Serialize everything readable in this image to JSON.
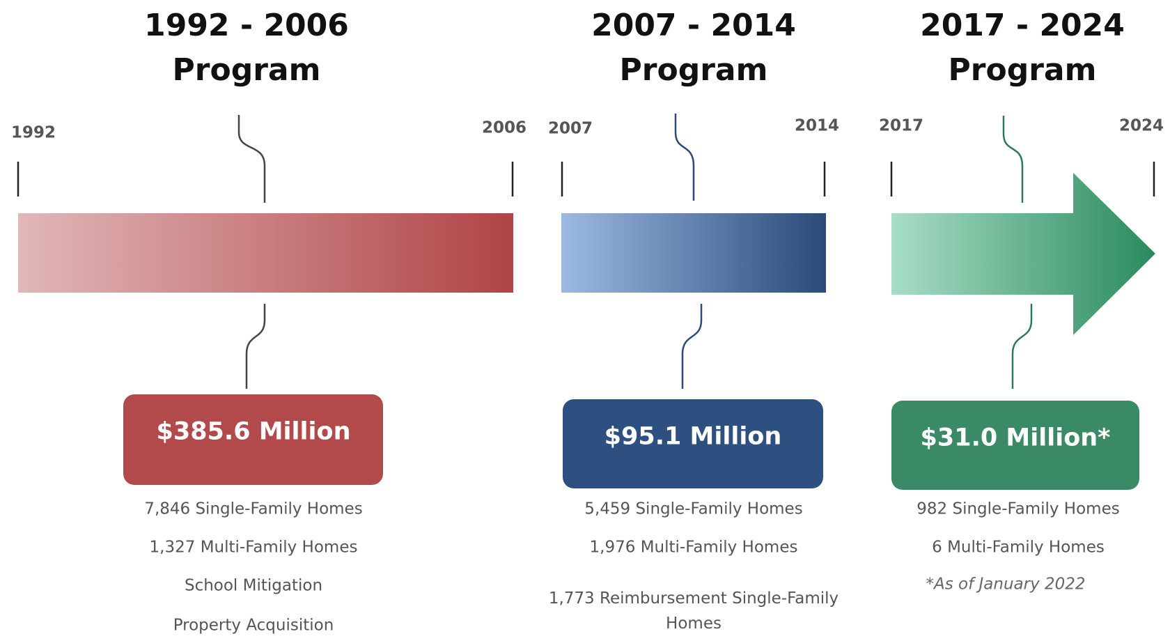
{
  "programs": [
    {
      "title": "1992 - 2006",
      "subtitle": "Program",
      "start": "1992",
      "end": "2006",
      "amount": "$385.6 Million",
      "details": [
        "7,846 Single-Family Homes",
        "1,327 Multi-Family Homes",
        "School Mitigation",
        "Property Acquisition"
      ]
    },
    {
      "title": "2007 - 2014",
      "subtitle": "Program",
      "start": "2007",
      "end": "2014",
      "amount": "$95.1 Million",
      "details": [
        "5,459 Single-Family Homes",
        "1,976 Multi-Family Homes",
        "1,773 Reimbursement Single-Family Homes"
      ]
    },
    {
      "title": "2017 - 2024",
      "subtitle": "Program",
      "start": "2017",
      "end": "2024",
      "amount": "$31.0 Million*",
      "details": [
        "982 Single-Family Homes",
        "6 Multi-Family Homes"
      ],
      "note": "*As of January 2022"
    }
  ]
}
